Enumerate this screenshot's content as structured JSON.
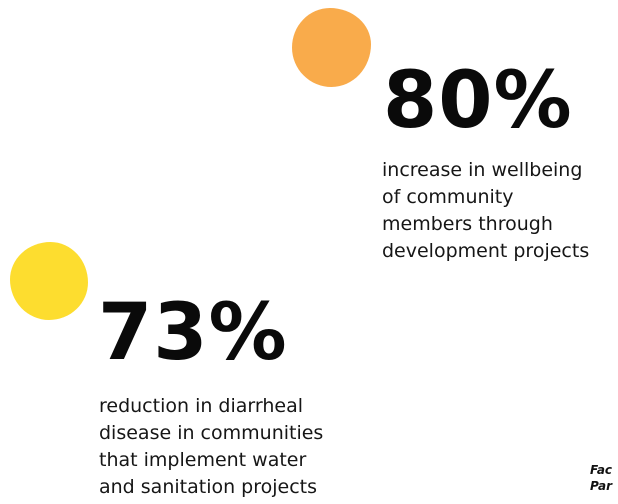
{
  "colors": {
    "orange_blob": "#f9ab4b",
    "yellow_blob": "#fddd2f",
    "text": "#111111",
    "background": "#ffffff"
  },
  "stats": [
    {
      "value": "80%",
      "lines": [
        "increase in wellbeing",
        "of community",
        "members through",
        "development projects"
      ]
    },
    {
      "value": "73%",
      "lines": [
        "reduction in diarrheal",
        "disease in communities",
        "that implement water",
        "and sanitation projects"
      ]
    }
  ],
  "corner_note": {
    "lines": [
      "Fac",
      "Par"
    ]
  }
}
